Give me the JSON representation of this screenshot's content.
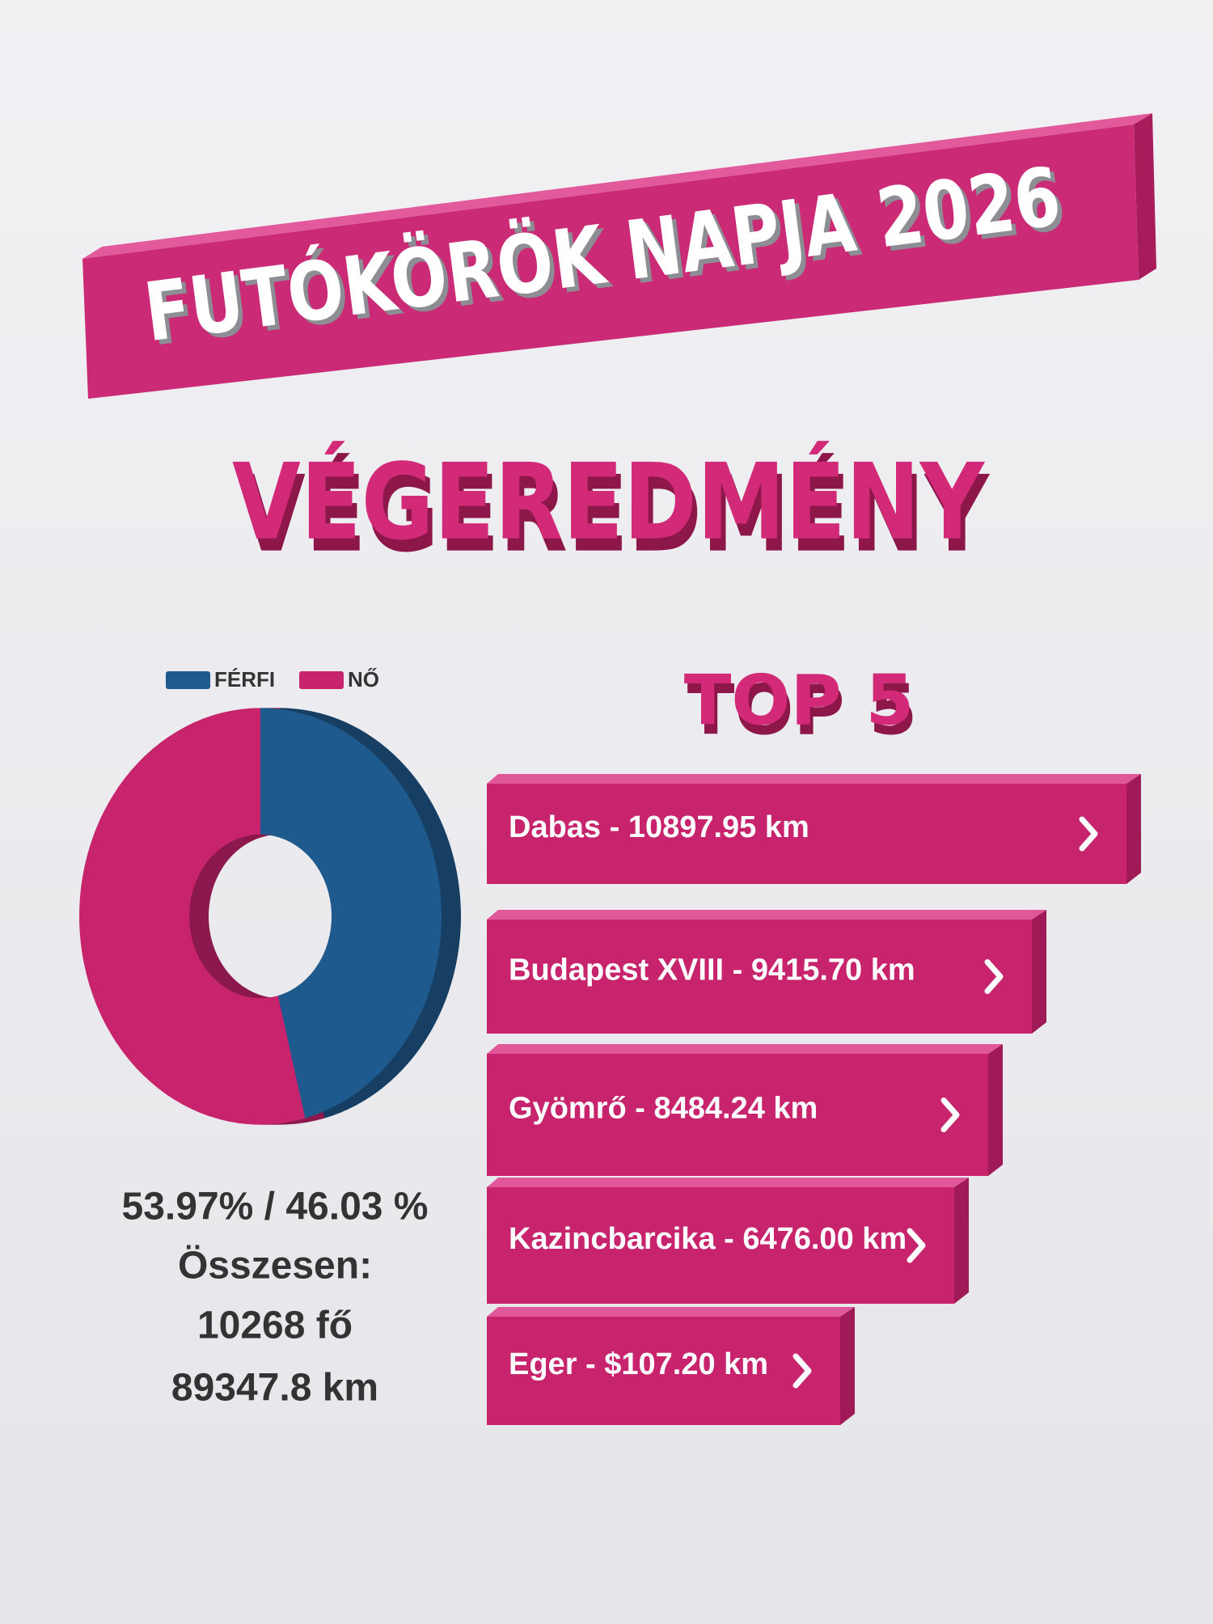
{
  "header": {
    "title": "FUTÓKÖRÖK NAPJA 2026",
    "subtitle": "VÉGEREDMÉNY"
  },
  "chart_data": {
    "type": "donut",
    "categories": [
      "FÉRFI",
      "NŐ"
    ],
    "values": [
      46.03,
      53.97
    ],
    "colors": [
      "#1f5a8e",
      "#c8246e"
    ]
  },
  "stats": {
    "ratio": "53.97% / 46.03 %",
    "total_label": "Összesen:",
    "people": "10268 fő",
    "distance": "89347.8 km"
  },
  "top5": {
    "title": "TOP 5",
    "items": [
      "Dabas - 10897.95 km",
      "Budapest XVIII - 9415.70 km",
      "Gyömrő - 8484.24 km",
      "Kazincbarcika - 6476.00 km",
      "Eger - $107.20 km"
    ]
  }
}
